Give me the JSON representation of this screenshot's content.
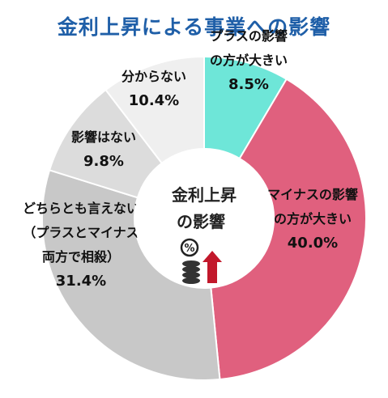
{
  "title": "金利上昇による事業への影響",
  "center_label": [
    "金利上昇",
    "の影響"
  ],
  "center_icon": "coins-percent-up-arrow-icon",
  "chart_data": {
    "type": "pie",
    "style": "donut",
    "title": "金利上昇による事業への影響",
    "unit": "%",
    "slices": [
      {
        "label_lines": [
          "プラスの影響",
          "の方が大きい"
        ],
        "value": 8.5,
        "value_text": "8.5%",
        "color": "#6ee6d8"
      },
      {
        "label_lines": [
          "マイナスの影響",
          "の方が大きい"
        ],
        "value": 40.0,
        "value_text": "40.0%",
        "color": "#e0607e"
      },
      {
        "label_lines": [
          "どちらとも言えない",
          "（プラスとマイナス",
          "両方で相殺）"
        ],
        "value": 31.4,
        "value_text": "31.4%",
        "color": "#c8c8c8"
      },
      {
        "label_lines": [
          "影響はない"
        ],
        "value": 9.8,
        "value_text": "9.8%",
        "color": "#dcdcdc"
      },
      {
        "label_lines": [
          "分からない"
        ],
        "value": 10.4,
        "value_text": "10.4%",
        "color": "#efefef"
      }
    ]
  }
}
